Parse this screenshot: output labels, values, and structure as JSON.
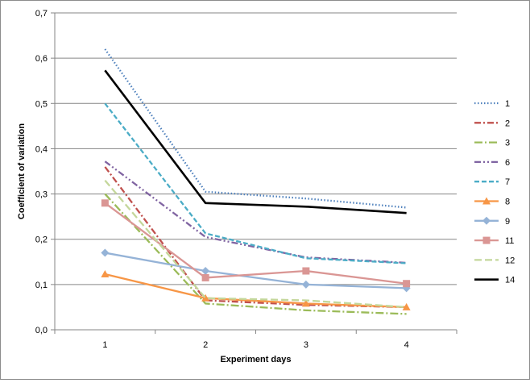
{
  "chart_data": {
    "type": "line",
    "xlabel": "Experiment days",
    "ylabel": "Coefficient of variation",
    "categories": [
      "1",
      "2",
      "3",
      "4"
    ],
    "ylim": [
      0,
      0.7
    ],
    "yticks": [
      "0,0",
      "0,1",
      "0,2",
      "0,3",
      "0,4",
      "0,5",
      "0,6",
      "0,7"
    ],
    "grid": "horizontal",
    "legend_position": "right",
    "series": [
      {
        "name": "1",
        "values": [
          0.62,
          0.305,
          0.29,
          0.27
        ],
        "color": "#4F81BD",
        "dash": "dotted",
        "marker": "none"
      },
      {
        "name": "2",
        "values": [
          0.36,
          0.065,
          0.055,
          0.05
        ],
        "color": "#C0504D",
        "dash": "dashdot",
        "marker": "none"
      },
      {
        "name": "3",
        "values": [
          0.3,
          0.058,
          0.043,
          0.035
        ],
        "color": "#9BBB59",
        "dash": "longdashdot",
        "marker": "none"
      },
      {
        "name": "6",
        "values": [
          0.372,
          0.205,
          0.16,
          0.148
        ],
        "color": "#8064A2",
        "dash": "dashdotdot",
        "marker": "none"
      },
      {
        "name": "7",
        "values": [
          0.5,
          0.213,
          0.158,
          0.147
        ],
        "color": "#4BACC6",
        "dash": "dashed",
        "marker": "none"
      },
      {
        "name": "8",
        "values": [
          0.123,
          0.07,
          0.058,
          0.05
        ],
        "color": "#F79646",
        "dash": "solid",
        "marker": "triangle"
      },
      {
        "name": "9",
        "values": [
          0.17,
          0.13,
          0.1,
          0.092
        ],
        "color": "#95B3D7",
        "dash": "solid",
        "marker": "diamond"
      },
      {
        "name": "11",
        "values": [
          0.28,
          0.115,
          0.13,
          0.102
        ],
        "color": "#DA9694",
        "dash": "solid",
        "marker": "square"
      },
      {
        "name": "12",
        "values": [
          0.33,
          0.07,
          0.065,
          0.05
        ],
        "color": "#C4D79B",
        "dash": "longdash",
        "marker": "none"
      },
      {
        "name": "14",
        "values": [
          0.573,
          0.28,
          0.272,
          0.258
        ],
        "color": "#000000",
        "dash": "solid",
        "marker": "none"
      }
    ]
  }
}
